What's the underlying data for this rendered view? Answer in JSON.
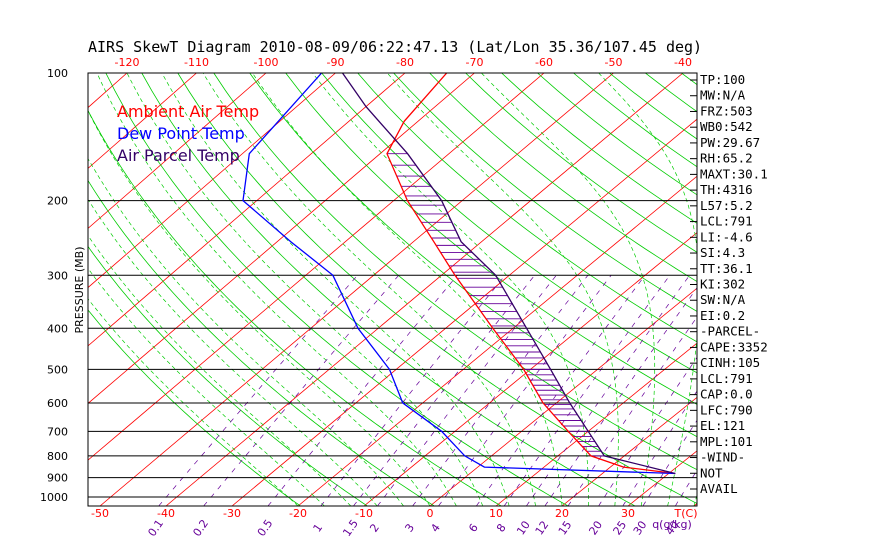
{
  "chart_data": {
    "type": "line",
    "title": "AIRS SkewT Diagram 2010-08-09/06:22:47.13 (Lat/Lon 35.36/107.45 deg)",
    "ylabel": "PRESSURE (MB)",
    "xlabel_bottom": "T(C)",
    "mixing_ratio_unit": "q(g/kg)",
    "pressure_levels": [
      100,
      200,
      300,
      400,
      500,
      600,
      700,
      800,
      900,
      1000
    ],
    "pressure_tick_labels": [
      "100",
      "200",
      "300",
      "400",
      "500",
      "600",
      "700",
      "800",
      "900",
      "1000"
    ],
    "temp_ticks_top": [
      -120,
      -110,
      -100,
      -90,
      -80,
      -70,
      -60,
      -50,
      -40
    ],
    "temp_tick_labels_top": [
      "-120",
      "-110",
      "-100",
      "-90",
      "-80",
      "-70",
      "-60",
      "-50",
      "-40"
    ],
    "temp_ticks_bottom": [
      -50,
      -40,
      -30,
      -20,
      -10,
      0,
      10,
      20,
      30
    ],
    "temp_tick_labels_bottom": [
      "-50",
      "-40",
      "-30",
      "-20",
      "-10",
      "0",
      "10",
      "20",
      "30"
    ],
    "mixing_ratio_values": [
      0.1,
      0.2,
      0.5,
      1,
      1.5,
      2,
      3,
      4,
      6,
      8,
      10,
      12,
      15,
      20,
      25,
      30,
      40
    ],
    "mixing_ratio_labels": [
      "0.1",
      "0.2",
      "0.5",
      "1",
      "1.5",
      "2",
      "3",
      "4",
      "6",
      "8",
      "10",
      "12",
      "15",
      "20",
      "25",
      "30",
      "40"
    ],
    "legend": [
      {
        "name": "Ambient Air Temp",
        "color": "#ff0000"
      },
      {
        "name": "Dew Point Temp",
        "color": "#0000ff"
      },
      {
        "name": "Air Parcel Temp",
        "color": "#330066"
      }
    ],
    "series": [
      {
        "name": "Ambient Air Temp",
        "color": "#ff0000",
        "points": [
          {
            "p": 100,
            "t": -74
          },
          {
            "p": 130,
            "t": -72
          },
          {
            "p": 155,
            "t": -69
          },
          {
            "p": 200,
            "t": -58
          },
          {
            "p": 250,
            "t": -47
          },
          {
            "p": 300,
            "t": -38
          },
          {
            "p": 400,
            "t": -23
          },
          {
            "p": 500,
            "t": -11
          },
          {
            "p": 600,
            "t": -2
          },
          {
            "p": 700,
            "t": 7
          },
          {
            "p": 800,
            "t": 15
          },
          {
            "p": 850,
            "t": 22
          },
          {
            "p": 880,
            "t": 31
          }
        ]
      },
      {
        "name": "Dew Point Temp",
        "color": "#0000ff",
        "points": [
          {
            "p": 100,
            "t": -92
          },
          {
            "p": 155,
            "t": -89
          },
          {
            "p": 200,
            "t": -82
          },
          {
            "p": 250,
            "t": -68
          },
          {
            "p": 300,
            "t": -56
          },
          {
            "p": 400,
            "t": -43
          },
          {
            "p": 500,
            "t": -31
          },
          {
            "p": 600,
            "t": -23
          },
          {
            "p": 700,
            "t": -12
          },
          {
            "p": 800,
            "t": -4
          },
          {
            "p": 850,
            "t": 1
          },
          {
            "p": 880,
            "t": 31
          }
        ]
      },
      {
        "name": "Air Parcel Temp",
        "color": "#330066",
        "points": [
          {
            "p": 100,
            "t": -89
          },
          {
            "p": 120,
            "t": -80
          },
          {
            "p": 155,
            "t": -66
          },
          {
            "p": 200,
            "t": -53
          },
          {
            "p": 250,
            "t": -43
          },
          {
            "p": 300,
            "t": -32
          },
          {
            "p": 400,
            "t": -18
          },
          {
            "p": 500,
            "t": -7
          },
          {
            "p": 600,
            "t": 2
          },
          {
            "p": 700,
            "t": 10
          },
          {
            "p": 800,
            "t": 17
          },
          {
            "p": 880,
            "t": 31
          }
        ]
      }
    ],
    "cape_hatch_pressures": [
      155,
      165,
      175,
      185,
      195,
      205,
      215,
      225,
      235,
      245,
      255,
      265,
      275,
      285,
      295,
      305,
      320,
      335,
      350,
      365,
      380,
      395,
      410,
      425,
      440,
      455,
      470,
      485,
      500,
      515,
      530,
      545,
      560,
      575,
      590,
      605,
      620,
      640,
      660,
      680,
      700,
      720,
      740,
      760,
      780,
      800
    ],
    "stats": [
      "TP:100",
      "MW:N/A",
      "FRZ:503",
      "WB0:542",
      "PW:29.67",
      "RH:65.2",
      "MAXT:30.1",
      "TH:4316",
      "L57:5.2",
      "LCL:791",
      "LI:-4.6",
      "SI:4.3",
      "TT:36.1",
      "KI:302",
      "SW:N/A",
      "EI:0.2",
      "-PARCEL-",
      "CAPE:3352",
      "CINH:105",
      "LCL:791",
      "CAP:0.0",
      "LFC:790",
      "EL:121",
      "MPL:101",
      "-WIND-",
      "NOT",
      "AVAIL"
    ]
  }
}
